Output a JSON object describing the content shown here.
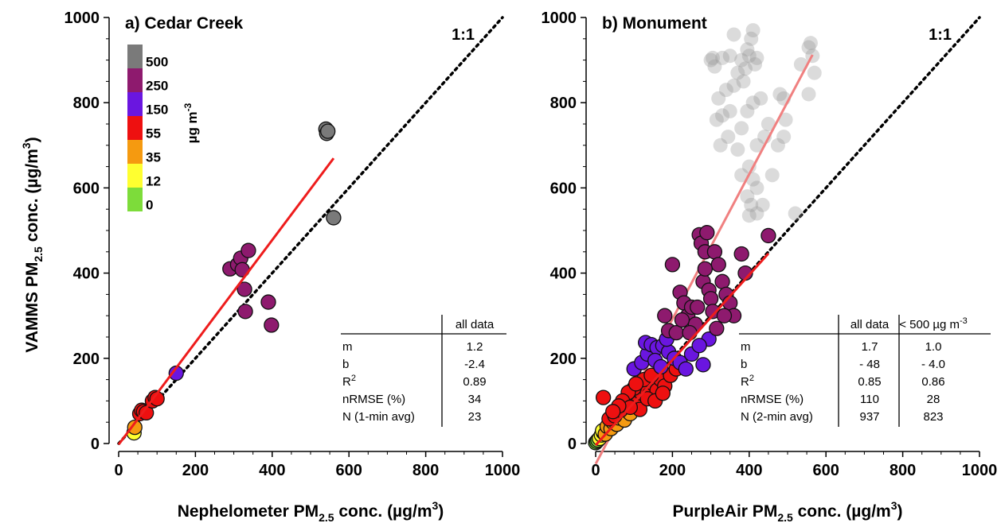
{
  "chart_data": [
    {
      "type": "scatter",
      "title": "a) Cedar Creek",
      "xlabel": "Nephelometer PM2.5 conc. (µg/m3)",
      "xlabel_parts": {
        "pre": "Nephelometer PM",
        "sub": "2.5",
        "mid": " conc. (µg/m",
        "sup": "3",
        "post": ")"
      },
      "ylabel": "VAMMS PM2.5 conc. (µg/m3)",
      "ylabel_parts": {
        "pre": "VAMMS PM",
        "sub": "2.5",
        "mid": " conc. (µg/m",
        "sup": "3",
        "post": ")"
      },
      "xlim": [
        0,
        1000
      ],
      "ylim": [
        0,
        1000
      ],
      "xticks": [
        "0",
        "200",
        "400",
        "600",
        "800",
        "1000"
      ],
      "yticks": [
        "0",
        "200",
        "400",
        "600",
        "800",
        "1000"
      ],
      "one_to_one_label": "1:1",
      "points": [
        {
          "x": 40,
          "y": 25
        },
        {
          "x": 42,
          "y": 38
        },
        {
          "x": 55,
          "y": 70
        },
        {
          "x": 60,
          "y": 78
        },
        {
          "x": 65,
          "y": 75
        },
        {
          "x": 72,
          "y": 72
        },
        {
          "x": 88,
          "y": 100
        },
        {
          "x": 95,
          "y": 108
        },
        {
          "x": 100,
          "y": 105
        },
        {
          "x": 150,
          "y": 165
        },
        {
          "x": 290,
          "y": 410
        },
        {
          "x": 310,
          "y": 420
        },
        {
          "x": 318,
          "y": 435
        },
        {
          "x": 322,
          "y": 408
        },
        {
          "x": 328,
          "y": 362
        },
        {
          "x": 330,
          "y": 310
        },
        {
          "x": 338,
          "y": 453
        },
        {
          "x": 390,
          "y": 332
        },
        {
          "x": 398,
          "y": 278
        },
        {
          "x": 540,
          "y": 738
        },
        {
          "x": 542,
          "y": 728
        },
        {
          "x": 545,
          "y": 733
        },
        {
          "x": 560,
          "y": 530
        }
      ],
      "fit": {
        "x0": 0,
        "x1": 560,
        "m": 1.2,
        "b": -2.4,
        "color": "#ee1c1c"
      },
      "table": {
        "header": [
          "",
          "all data"
        ],
        "rows": [
          [
            "m",
            "1.2"
          ],
          [
            "b",
            "-2.4"
          ],
          [
            "R",
            "0.89"
          ],
          [
            "nRMSE (%)",
            "34"
          ],
          [
            "N (1-min avg)",
            "23"
          ]
        ],
        "r2_sup": "2"
      }
    },
    {
      "type": "scatter",
      "title": "b) Monument",
      "xlabel": "PurpleAir PM2.5 conc. (µg/m3)",
      "xlabel_parts": {
        "pre": "PurpleAir PM",
        "sub": "2.5",
        "mid": " conc. (µg/m",
        "sup": "3",
        "post": ")"
      },
      "xlim": [
        0,
        1000
      ],
      "ylim": [
        0,
        1000
      ],
      "xticks": [
        "0",
        "200",
        "400",
        "600",
        "800",
        "1000"
      ],
      "yticks": [
        "0",
        "200",
        "400",
        "600",
        "800",
        "1000"
      ],
      "one_to_one_label": "1:1",
      "points_grey": [
        {
          "x": 410,
          "y": 970
        },
        {
          "x": 405,
          "y": 950
        },
        {
          "x": 395,
          "y": 925
        },
        {
          "x": 400,
          "y": 910
        },
        {
          "x": 380,
          "y": 900
        },
        {
          "x": 390,
          "y": 880
        },
        {
          "x": 415,
          "y": 890
        },
        {
          "x": 420,
          "y": 905
        },
        {
          "x": 350,
          "y": 910
        },
        {
          "x": 330,
          "y": 905
        },
        {
          "x": 310,
          "y": 885
        },
        {
          "x": 305,
          "y": 905
        },
        {
          "x": 370,
          "y": 870
        },
        {
          "x": 360,
          "y": 840
        },
        {
          "x": 340,
          "y": 830
        },
        {
          "x": 320,
          "y": 810
        },
        {
          "x": 330,
          "y": 770
        },
        {
          "x": 315,
          "y": 760
        },
        {
          "x": 325,
          "y": 700
        },
        {
          "x": 345,
          "y": 720
        },
        {
          "x": 380,
          "y": 740
        },
        {
          "x": 395,
          "y": 780
        },
        {
          "x": 410,
          "y": 800
        },
        {
          "x": 430,
          "y": 810
        },
        {
          "x": 440,
          "y": 720
        },
        {
          "x": 450,
          "y": 750
        },
        {
          "x": 420,
          "y": 700
        },
        {
          "x": 400,
          "y": 650
        },
        {
          "x": 410,
          "y": 620
        },
        {
          "x": 420,
          "y": 600
        },
        {
          "x": 395,
          "y": 580
        },
        {
          "x": 405,
          "y": 560
        },
        {
          "x": 420,
          "y": 540
        },
        {
          "x": 435,
          "y": 560
        },
        {
          "x": 400,
          "y": 535
        },
        {
          "x": 380,
          "y": 630
        },
        {
          "x": 460,
          "y": 630
        },
        {
          "x": 475,
          "y": 700
        },
        {
          "x": 490,
          "y": 720
        },
        {
          "x": 495,
          "y": 760
        },
        {
          "x": 490,
          "y": 810
        },
        {
          "x": 480,
          "y": 820
        },
        {
          "x": 520,
          "y": 540
        },
        {
          "x": 535,
          "y": 890
        },
        {
          "x": 555,
          "y": 930
        },
        {
          "x": 560,
          "y": 940
        },
        {
          "x": 565,
          "y": 910
        },
        {
          "x": 570,
          "y": 870
        },
        {
          "x": 555,
          "y": 820
        },
        {
          "x": 300,
          "y": 900
        },
        {
          "x": 350,
          "y": 780
        },
        {
          "x": 370,
          "y": 690
        },
        {
          "x": 360,
          "y": 960
        },
        {
          "x": 385,
          "y": 850
        }
      ],
      "points": [
        {
          "x": 0,
          "y": 2,
          "c": 1
        },
        {
          "x": 3,
          "y": 5,
          "c": 1
        },
        {
          "x": 6,
          "y": 8,
          "c": 1
        },
        {
          "x": 10,
          "y": 12,
          "c": 2
        },
        {
          "x": 15,
          "y": 20,
          "c": 2
        },
        {
          "x": 20,
          "y": 26,
          "c": 2
        },
        {
          "x": 18,
          "y": 30,
          "c": 2
        },
        {
          "x": 25,
          "y": 22,
          "c": 3
        },
        {
          "x": 30,
          "y": 40,
          "c": 3
        },
        {
          "x": 40,
          "y": 35,
          "c": 3
        },
        {
          "x": 45,
          "y": 50,
          "c": 3
        },
        {
          "x": 55,
          "y": 45,
          "c": 3
        },
        {
          "x": 60,
          "y": 60,
          "c": 3
        },
        {
          "x": 75,
          "y": 55,
          "c": 3
        },
        {
          "x": 90,
          "y": 70,
          "c": 3
        },
        {
          "x": 35,
          "y": 58,
          "c": 4
        },
        {
          "x": 50,
          "y": 65,
          "c": 4
        },
        {
          "x": 65,
          "y": 78,
          "c": 4
        },
        {
          "x": 80,
          "y": 90,
          "c": 4
        },
        {
          "x": 95,
          "y": 100,
          "c": 4
        },
        {
          "x": 110,
          "y": 95,
          "c": 4
        },
        {
          "x": 120,
          "y": 118,
          "c": 4
        },
        {
          "x": 130,
          "y": 130,
          "c": 4
        },
        {
          "x": 140,
          "y": 115,
          "c": 4
        },
        {
          "x": 150,
          "y": 140,
          "c": 4
        },
        {
          "x": 160,
          "y": 125,
          "c": 4
        },
        {
          "x": 170,
          "y": 150,
          "c": 4
        },
        {
          "x": 180,
          "y": 135,
          "c": 4
        },
        {
          "x": 100,
          "y": 130,
          "c": 4
        },
        {
          "x": 85,
          "y": 120,
          "c": 4
        },
        {
          "x": 70,
          "y": 100,
          "c": 4
        },
        {
          "x": 20,
          "y": 108,
          "c": 4
        },
        {
          "x": 115,
          "y": 80,
          "c": 4
        },
        {
          "x": 135,
          "y": 105,
          "c": 4
        },
        {
          "x": 155,
          "y": 100,
          "c": 4
        },
        {
          "x": 125,
          "y": 150,
          "c": 4
        },
        {
          "x": 105,
          "y": 140,
          "c": 4
        },
        {
          "x": 90,
          "y": 85,
          "c": 4
        },
        {
          "x": 60,
          "y": 88,
          "c": 4
        },
        {
          "x": 45,
          "y": 75,
          "c": 4
        },
        {
          "x": 175,
          "y": 118,
          "c": 4
        },
        {
          "x": 195,
          "y": 160,
          "c": 4
        },
        {
          "x": 210,
          "y": 175,
          "c": 4
        },
        {
          "x": 145,
          "y": 160,
          "c": 4
        },
        {
          "x": 100,
          "y": 175,
          "c": 5
        },
        {
          "x": 120,
          "y": 190,
          "c": 5
        },
        {
          "x": 135,
          "y": 210,
          "c": 5
        },
        {
          "x": 130,
          "y": 237,
          "c": 5
        },
        {
          "x": 145,
          "y": 232,
          "c": 5
        },
        {
          "x": 160,
          "y": 225,
          "c": 5
        },
        {
          "x": 175,
          "y": 230,
          "c": 5
        },
        {
          "x": 190,
          "y": 215,
          "c": 5
        },
        {
          "x": 205,
          "y": 200,
          "c": 5
        },
        {
          "x": 220,
          "y": 190,
          "c": 5
        },
        {
          "x": 235,
          "y": 175,
          "c": 5
        },
        {
          "x": 250,
          "y": 210,
          "c": 5
        },
        {
          "x": 280,
          "y": 185,
          "c": 5
        },
        {
          "x": 295,
          "y": 245,
          "c": 5
        },
        {
          "x": 155,
          "y": 195,
          "c": 5
        },
        {
          "x": 170,
          "y": 180,
          "c": 5
        },
        {
          "x": 185,
          "y": 245,
          "c": 5
        },
        {
          "x": 270,
          "y": 230,
          "c": 5
        },
        {
          "x": 200,
          "y": 420,
          "c": 6
        },
        {
          "x": 220,
          "y": 355,
          "c": 6
        },
        {
          "x": 230,
          "y": 330,
          "c": 6
        },
        {
          "x": 240,
          "y": 300,
          "c": 6
        },
        {
          "x": 250,
          "y": 320,
          "c": 6
        },
        {
          "x": 260,
          "y": 280,
          "c": 6
        },
        {
          "x": 270,
          "y": 490,
          "c": 6
        },
        {
          "x": 275,
          "y": 470,
          "c": 6
        },
        {
          "x": 280,
          "y": 380,
          "c": 6
        },
        {
          "x": 285,
          "y": 450,
          "c": 6
        },
        {
          "x": 290,
          "y": 495,
          "c": 6
        },
        {
          "x": 295,
          "y": 360,
          "c": 6
        },
        {
          "x": 300,
          "y": 340,
          "c": 6
        },
        {
          "x": 305,
          "y": 310,
          "c": 6
        },
        {
          "x": 310,
          "y": 450,
          "c": 6
        },
        {
          "x": 320,
          "y": 420,
          "c": 6
        },
        {
          "x": 330,
          "y": 380,
          "c": 6
        },
        {
          "x": 340,
          "y": 350,
          "c": 6
        },
        {
          "x": 350,
          "y": 330,
          "c": 6
        },
        {
          "x": 360,
          "y": 300,
          "c": 6
        },
        {
          "x": 380,
          "y": 445,
          "c": 6
        },
        {
          "x": 390,
          "y": 400,
          "c": 6
        },
        {
          "x": 450,
          "y": 488,
          "c": 6
        },
        {
          "x": 180,
          "y": 300,
          "c": 6
        },
        {
          "x": 190,
          "y": 265,
          "c": 6
        },
        {
          "x": 210,
          "y": 260,
          "c": 6
        },
        {
          "x": 225,
          "y": 290,
          "c": 6
        },
        {
          "x": 245,
          "y": 260,
          "c": 6
        },
        {
          "x": 265,
          "y": 320,
          "c": 6
        },
        {
          "x": 315,
          "y": 270,
          "c": 6
        },
        {
          "x": 335,
          "y": 300,
          "c": 6
        },
        {
          "x": 285,
          "y": 410,
          "c": 6
        }
      ],
      "fit_all": {
        "x0": 0,
        "x1": 565,
        "m": 1.7,
        "b": -48,
        "color": "#f08080"
      },
      "fit_sub": {
        "x0": 0,
        "x1": 450,
        "m": 1.0,
        "b": -4.0,
        "color": "#ee1c1c"
      },
      "table": {
        "header": [
          "",
          "all data",
          "< 500 µg m"
        ],
        "header_sup": "-3",
        "rows": [
          [
            "m",
            "1.7",
            "1.0"
          ],
          [
            "b",
            "- 48",
            "- 4.0"
          ],
          [
            "R",
            "0.85",
            "0.86"
          ],
          [
            "nRMSE (%)",
            "110",
            "28"
          ],
          [
            "N (2-min avg)",
            "937",
            "823"
          ]
        ],
        "r2_sup": "2"
      }
    }
  ],
  "colorbar": {
    "unit_label": "µg m",
    "unit_sup": "-3",
    "labels": [
      "500",
      "250",
      "150",
      "55",
      "35",
      "12",
      "0"
    ],
    "colors": [
      "#7a7a7a",
      "#8e1a6e",
      "#6a16e0",
      "#ee1010",
      "#f59a10",
      "#ffff30",
      "#7ddc3a"
    ]
  },
  "category_colors": [
    "#7a7a7a",
    "#7ddc3a",
    "#ffff30",
    "#f59a10",
    "#ee1010",
    "#6a16e0",
    "#8e1a6e"
  ]
}
